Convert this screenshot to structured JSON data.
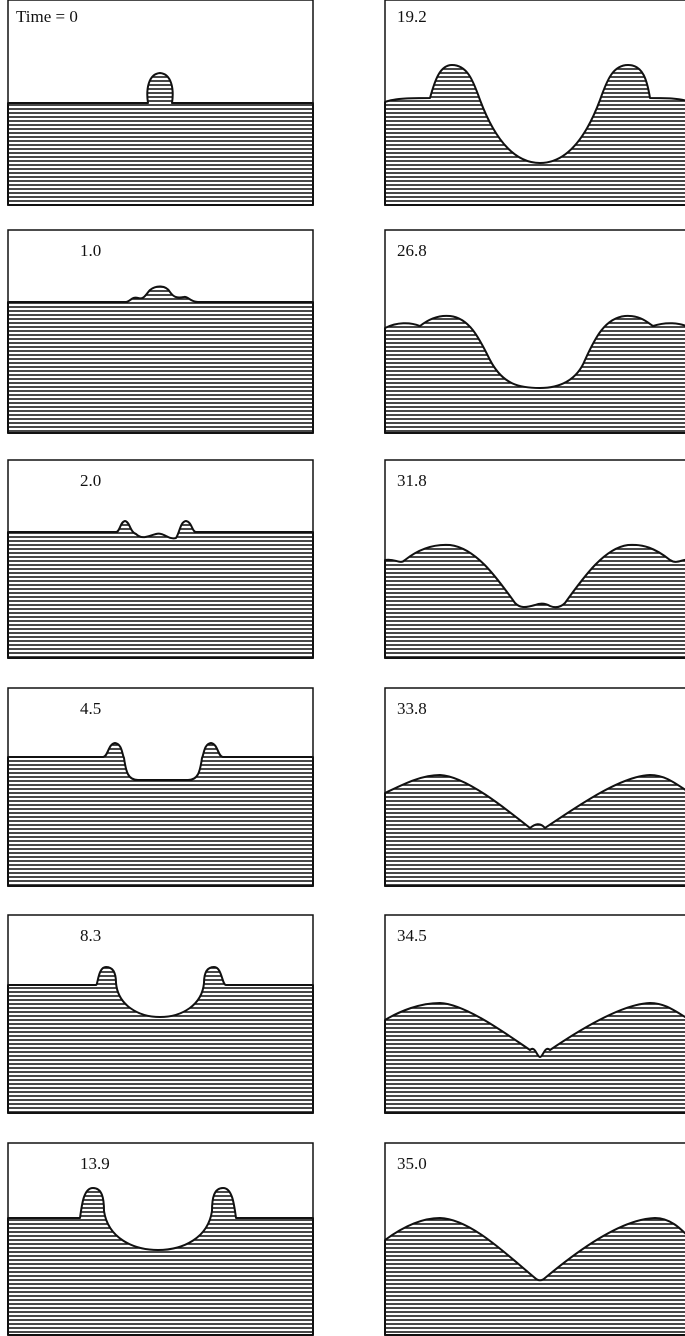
{
  "panels": [
    {
      "label": "Time = 0"
    },
    {
      "label": "1.0"
    },
    {
      "label": "2.0"
    },
    {
      "label": "4.5"
    },
    {
      "label": "8.3"
    },
    {
      "label": "13.9"
    },
    {
      "label": "19.2"
    },
    {
      "label": "26.8"
    },
    {
      "label": "31.8"
    },
    {
      "label": "33.8"
    },
    {
      "label": "34.5"
    },
    {
      "label": "35.0"
    }
  ]
}
